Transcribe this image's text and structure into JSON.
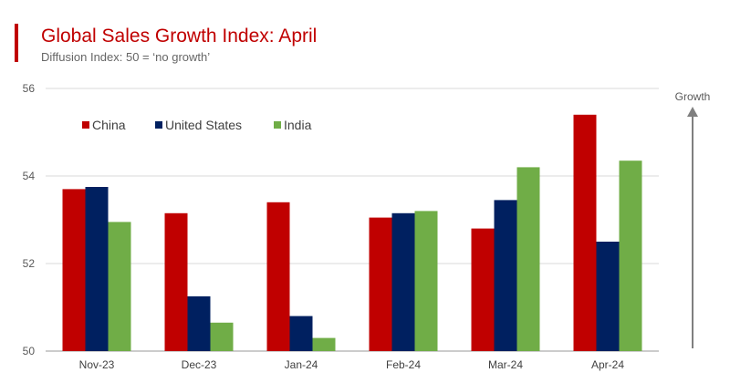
{
  "chart_data": {
    "type": "bar",
    "title": "Global Sales Growth Index: April",
    "subtitle": "Diffusion Index: 50 = ‘no growth’",
    "categories": [
      "Nov-23",
      "Dec-23",
      "Jan-24",
      "Feb-24",
      "Mar-24",
      "Apr-24"
    ],
    "series": [
      {
        "name": "China",
        "color": "#c00000",
        "values": [
          53.7,
          53.15,
          53.4,
          53.05,
          52.8,
          55.4
        ]
      },
      {
        "name": "United States",
        "color": "#002060",
        "values": [
          53.75,
          51.25,
          50.8,
          53.15,
          53.45,
          52.5
        ]
      },
      {
        "name": "India",
        "color": "#70ad47",
        "values": [
          52.95,
          50.65,
          50.3,
          53.2,
          54.2,
          54.35
        ]
      }
    ],
    "ylim": [
      50,
      56
    ],
    "yticks": [
      50,
      52,
      54,
      56
    ],
    "grid": true,
    "legend": "top-left",
    "annotation": "Growth"
  }
}
